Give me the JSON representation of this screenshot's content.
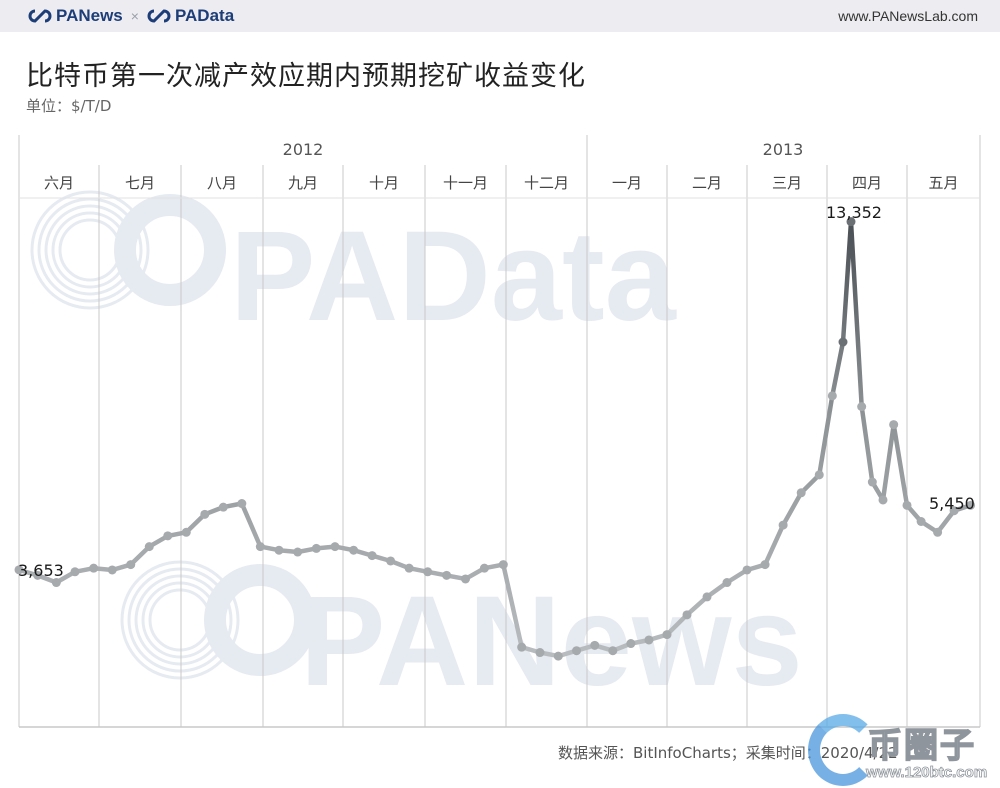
{
  "header": {
    "brand_left": "PANews",
    "brand_sep": "×",
    "brand_right": "PAData",
    "site_url": "www.PANewsLab.com"
  },
  "title": "比特币第一次减产效应期内预期挖矿收益变化",
  "subtitle": "单位：$/T/D",
  "footer": {
    "source": "数据来源：BitInfoCharts；采集时间：2020/4/22"
  },
  "watermarks": {
    "center_top": "PAData",
    "center_bottom": "PANews",
    "corner_cn": "币圈子",
    "corner_url": "www.120btc.com"
  },
  "colors": {
    "line_dark": "#4a4f55",
    "line_light": "#b9bcbf",
    "grid": "#c8c8c8",
    "watermark": "#e6eaf1",
    "topbar": "#ededf1",
    "brand": "#1d3d78"
  },
  "chart_data": {
    "type": "line",
    "title": "比特币第一次减产效应期内预期挖矿收益变化",
    "subtitle": "单位：$/T/D",
    "xlabel": "",
    "ylabel": "$/T/D",
    "years": [
      {
        "label": "2012",
        "months": [
          "六月",
          "七月",
          "八月",
          "九月",
          "十月",
          "十一月",
          "十二月"
        ]
      },
      {
        "label": "2013",
        "months": [
          "一月",
          "二月",
          "三月",
          "四月",
          "五月"
        ]
      }
    ],
    "categories": [
      "六月",
      "七月",
      "八月",
      "九月",
      "十月",
      "十一月",
      "十二月",
      "一月",
      "二月",
      "三月",
      "四月",
      "五月"
    ],
    "grid": "vertical month lines",
    "ylim": [
      0,
      14000
    ],
    "annotations": [
      {
        "label": "3,653",
        "value": 3653,
        "position": "start"
      },
      {
        "label": "13,352",
        "value": 13352,
        "position": "peak (April 2013)"
      },
      {
        "label": "5,450",
        "value": 5450,
        "position": "end"
      }
    ],
    "series": [
      {
        "name": "预期挖矿收益",
        "unit": "$/T/D",
        "x": [
          "2012-06-01",
          "2012-06-08",
          "2012-06-15",
          "2012-06-22",
          "2012-06-29",
          "2012-07-06",
          "2012-07-13",
          "2012-07-20",
          "2012-07-27",
          "2012-08-03",
          "2012-08-10",
          "2012-08-17",
          "2012-08-24",
          "2012-08-31",
          "2012-09-07",
          "2012-09-14",
          "2012-09-21",
          "2012-09-28",
          "2012-10-05",
          "2012-10-12",
          "2012-10-19",
          "2012-10-26",
          "2012-11-02",
          "2012-11-09",
          "2012-11-16",
          "2012-11-23",
          "2012-11-30",
          "2012-12-07",
          "2012-12-14",
          "2012-12-21",
          "2012-12-28",
          "2013-01-04",
          "2013-01-11",
          "2013-01-18",
          "2013-01-25",
          "2013-02-01",
          "2013-02-08",
          "2013-02-15",
          "2013-02-22",
          "2013-03-01",
          "2013-03-08",
          "2013-03-15",
          "2013-03-22",
          "2013-03-29",
          "2013-04-03",
          "2013-04-07",
          "2013-04-10",
          "2013-04-14",
          "2013-04-18",
          "2013-04-22",
          "2013-04-26",
          "2013-05-01",
          "2013-05-07",
          "2013-05-14",
          "2013-05-21",
          "2013-05-28"
        ],
        "values": [
          3653,
          3500,
          3300,
          3600,
          3700,
          3650,
          3800,
          4300,
          4600,
          4700,
          5200,
          5400,
          5500,
          4300,
          4200,
          4150,
          4250,
          4300,
          4200,
          4050,
          3900,
          3700,
          3600,
          3500,
          3400,
          3700,
          3800,
          1500,
          1350,
          1250,
          1400,
          1550,
          1400,
          1600,
          1700,
          1850,
          2400,
          2900,
          3300,
          3650,
          3800,
          4900,
          5800,
          6300,
          8500,
          10000,
          13352,
          8200,
          6100,
          5600,
          7700,
          5450,
          5000,
          4700,
          5300,
          5450
        ]
      }
    ]
  }
}
